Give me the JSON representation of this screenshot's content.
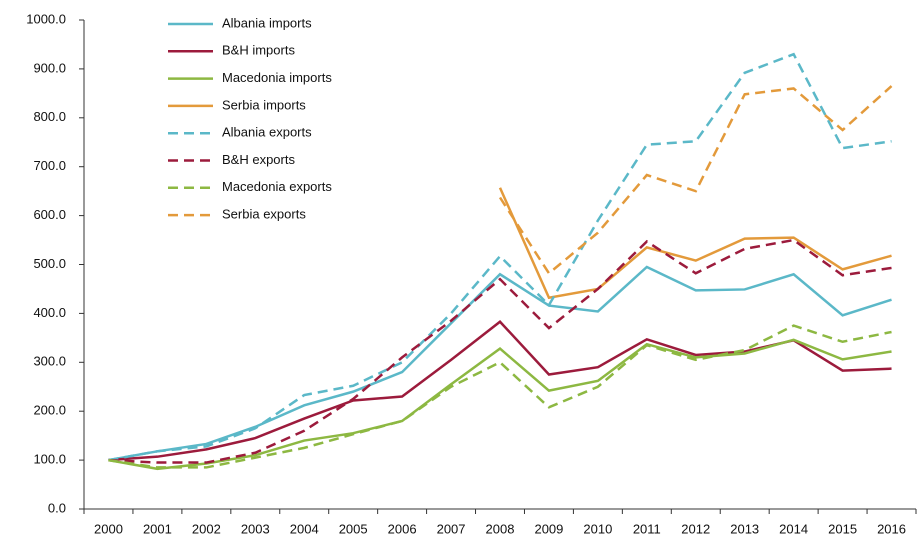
{
  "chart_data": {
    "type": "line",
    "categories": [
      "2000",
      "2001",
      "2002",
      "2003",
      "2004",
      "2005",
      "2006",
      "2007",
      "2008",
      "2009",
      "2010",
      "2011",
      "2012",
      "2013",
      "2014",
      "2015",
      "2016"
    ],
    "series": [
      {
        "name": "Albania imports",
        "color": "#5bb8c8",
        "dash": "solid",
        "values": [
          100,
          118,
          133,
          168,
          212,
          240,
          280,
          380,
          480,
          416,
          404,
          495,
          447,
          449,
          480,
          396,
          428
        ]
      },
      {
        "name": "B&H imports",
        "color": "#9c1b3c",
        "dash": "solid",
        "values": [
          100,
          107,
          122,
          145,
          185,
          222,
          230,
          305,
          383,
          275,
          290,
          347,
          315,
          322,
          345,
          283,
          287
        ]
      },
      {
        "name": "Macedonia imports",
        "color": "#8db842",
        "dash": "solid",
        "values": [
          100,
          82,
          93,
          110,
          140,
          155,
          180,
          255,
          328,
          242,
          262,
          337,
          310,
          318,
          346,
          306,
          322
        ]
      },
      {
        "name": "Serbia imports",
        "color": "#e39a3b",
        "dash": "solid",
        "values": [
          null,
          null,
          null,
          null,
          null,
          null,
          null,
          null,
          657,
          432,
          450,
          535,
          508,
          553,
          555,
          490,
          518
        ]
      },
      {
        "name": "Albania exports",
        "color": "#5bb8c8",
        "dash": "dashed",
        "values": [
          100,
          118,
          128,
          165,
          233,
          252,
          300,
          400,
          517,
          417,
          590,
          745,
          752,
          892,
          930,
          738,
          752
        ]
      },
      {
        "name": "B&H exports",
        "color": "#9c1b3c",
        "dash": "dashed",
        "values": [
          100,
          95,
          95,
          115,
          160,
          225,
          310,
          385,
          470,
          370,
          450,
          547,
          482,
          532,
          550,
          478,
          493
        ]
      },
      {
        "name": "Macedonia exports",
        "color": "#8db842",
        "dash": "dashed",
        "values": [
          100,
          85,
          85,
          105,
          125,
          153,
          180,
          250,
          300,
          208,
          250,
          335,
          305,
          325,
          375,
          342,
          362
        ]
      },
      {
        "name": "Serbia exports",
        "color": "#e39a3b",
        "dash": "dashed",
        "values": [
          null,
          null,
          null,
          null,
          null,
          null,
          null,
          null,
          637,
          482,
          565,
          683,
          650,
          848,
          860,
          775,
          865
        ]
      }
    ],
    "ylim": [
      0,
      1000
    ],
    "yticks": [
      {
        "value": 0,
        "label": "0.0"
      },
      {
        "value": 100,
        "label": "100.0"
      },
      {
        "value": 200,
        "label": "200.0"
      },
      {
        "value": 300,
        "label": "300.0"
      },
      {
        "value": 400,
        "label": "400.0"
      },
      {
        "value": 500,
        "label": "500.0"
      },
      {
        "value": 600,
        "label": "600.0"
      },
      {
        "value": 700,
        "label": "700.0"
      },
      {
        "value": 800,
        "label": "800.0"
      },
      {
        "value": 900,
        "label": "900.0"
      },
      {
        "value": 1000,
        "label": "1000.0"
      }
    ],
    "legend": "upper-left"
  }
}
